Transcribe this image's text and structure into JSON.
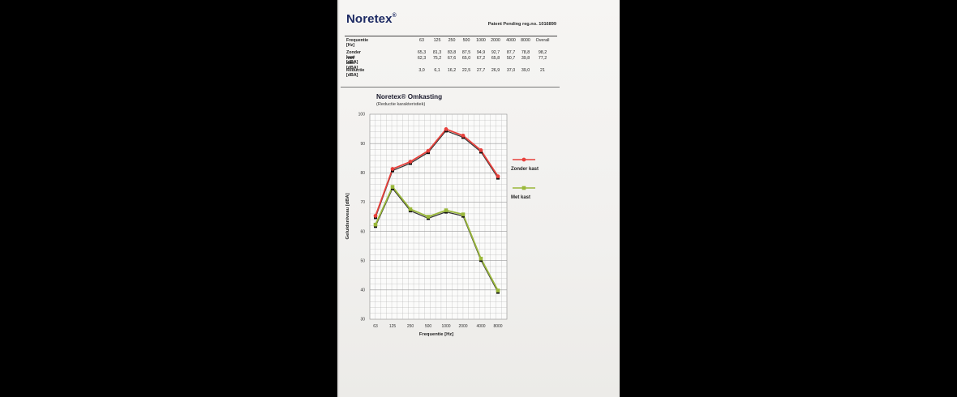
{
  "header": {
    "brand": "Noretex",
    "brand_mark": "®",
    "patent": "Patent Pending reg.no. 1016899"
  },
  "table": {
    "columns": [
      "63",
      "125",
      "250",
      "500",
      "1000",
      "2000",
      "4000",
      "8000",
      "Overall"
    ],
    "rows": [
      {
        "label": "Frequentie [Hz]",
        "values": [
          "63",
          "125",
          "250",
          "500",
          "1000",
          "2000",
          "4000",
          "8000",
          "Overall"
        ]
      },
      {
        "label": "Zonder kast [dBA]",
        "values": [
          "65,3",
          "81,3",
          "83,8",
          "87,5",
          "94,9",
          "92,7",
          "87,7",
          "78,8",
          "98,2"
        ]
      },
      {
        "label": "met kast [dBA]",
        "values": [
          "62,3",
          "75,2",
          "67,6",
          "65,0",
          "67,2",
          "65,8",
          "50,7",
          "39,8",
          "77,2"
        ]
      },
      {
        "label": "Reductie [dBA]",
        "values": [
          "3,0",
          "6,1",
          "16,2",
          "22,5",
          "27,7",
          "26,9",
          "37,0",
          "39,0",
          "21"
        ]
      }
    ]
  },
  "colors": {
    "zonder_kast": "#e8413c",
    "met_kast": "#9ab83a",
    "grid": "#b9b9b9",
    "brand": "#1d2a63"
  },
  "chart_data": {
    "type": "line",
    "title": "Noretex® Omkasting",
    "subtitle": "(Reductie karakteristiek)",
    "xlabel": "Frequentie [Hz]",
    "ylabel": "Geluidsniveau [dBA]",
    "ylim": [
      30,
      100
    ],
    "yticks": [
      30,
      40,
      50,
      60,
      70,
      80,
      90,
      100
    ],
    "categories": [
      "63",
      "125",
      "250",
      "500",
      "1000",
      "2000",
      "4000",
      "8000"
    ],
    "grid": true,
    "legend": "right",
    "series": [
      {
        "name": "Zonder kast",
        "marker": "circle",
        "values": [
          65.3,
          81.3,
          83.8,
          87.5,
          94.9,
          92.7,
          87.7,
          78.8
        ]
      },
      {
        "name": "Met kast",
        "marker": "square",
        "values": [
          62.3,
          75.2,
          67.6,
          65.0,
          67.2,
          65.8,
          50.7,
          39.8
        ]
      }
    ]
  }
}
